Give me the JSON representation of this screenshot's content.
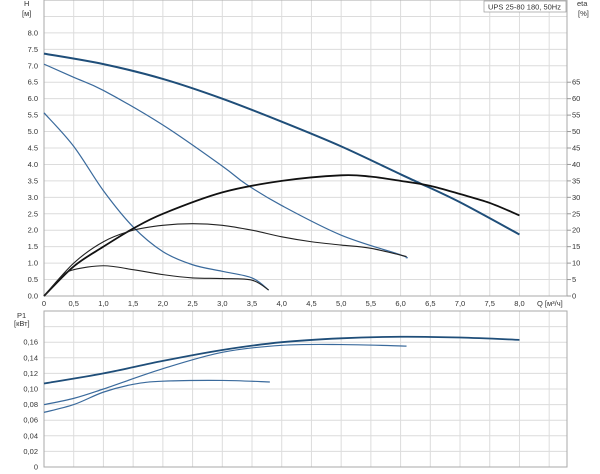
{
  "chart_data": [
    {
      "type": "line",
      "title": "UPS 25-80 180, 50Hz",
      "xlabel": "Q [м³/ч]",
      "ylabel": "H",
      "ylabel_unit": "[м]",
      "y2label": "eta",
      "y2label_unit": "[%]",
      "xlim": [
        0,
        8.8
      ],
      "ylim": [
        0,
        9.0
      ],
      "y2lim": [
        0,
        90
      ],
      "grid": true,
      "x_ticks": [
        "0",
        "0,5",
        "1,0",
        "1,5",
        "2,0",
        "2,5",
        "3,0",
        "3,5",
        "4,0",
        "4,5",
        "5,0",
        "5,5",
        "6,0",
        "6,5",
        "7,0",
        "7,5",
        "8,0"
      ],
      "y_ticks": [
        "0.0",
        "0.5",
        "1.0",
        "1.5",
        "2.0",
        "2.5",
        "3.0",
        "3.5",
        "4.0",
        "4.5",
        "5.0",
        "5.5",
        "6.0",
        "6.5",
        "7.0",
        "7.5",
        "8.0"
      ],
      "y2_ticks": [
        "0",
        "5",
        "10",
        "15",
        "20",
        "25",
        "30",
        "35",
        "40",
        "45",
        "50",
        "55",
        "60",
        "65"
      ],
      "head_series": [
        {
          "speed": "max",
          "color": "#1f4e79",
          "x": [
            0,
            1,
            2,
            3,
            4,
            5,
            6,
            6.3,
            7,
            8
          ],
          "y": [
            7.37,
            7.05,
            6.6,
            6.0,
            5.3,
            4.55,
            3.7,
            3.45,
            2.85,
            1.87
          ]
        },
        {
          "speed": "mid",
          "color": "#3a6a9c",
          "x": [
            0,
            0.5,
            1,
            2,
            3,
            3.4,
            4,
            5,
            6,
            6.1
          ],
          "y": [
            7.05,
            6.65,
            6.25,
            5.2,
            3.95,
            3.4,
            2.75,
            1.85,
            1.25,
            1.15
          ]
        },
        {
          "speed": "low",
          "color": "#3a6a9c",
          "x": [
            0,
            0.5,
            1,
            1.5,
            2,
            2.5,
            3,
            3.5,
            3.78
          ],
          "y": [
            5.57,
            4.55,
            3.2,
            2.1,
            1.35,
            0.95,
            0.75,
            0.55,
            0.18
          ]
        }
      ],
      "eta_series": [
        {
          "speed": "max",
          "color": "#111111",
          "x": [
            0,
            0.5,
            1,
            1.5,
            2,
            3,
            4,
            5,
            5.5,
            6,
            6.5,
            7,
            7.5,
            8
          ],
          "y": [
            0,
            9,
            15,
            20.5,
            25,
            31.5,
            35,
            36.7,
            36.3,
            35,
            33.5,
            31,
            28.3,
            24.5
          ]
        },
        {
          "speed": "mid",
          "color": "#222222",
          "x": [
            0,
            0.5,
            1,
            1.5,
            2,
            2.5,
            3,
            3.5,
            4,
            4.5,
            5,
            5.5,
            6.1
          ],
          "y": [
            0,
            10,
            16.5,
            20,
            21.5,
            22,
            21.5,
            20,
            18,
            16.5,
            15.5,
            14.5,
            12
          ]
        },
        {
          "speed": "low",
          "color": "#222222",
          "x": [
            0,
            0.3,
            0.5,
            1,
            1.5,
            2,
            2.5,
            3,
            3.5,
            3.78
          ],
          "y": [
            0,
            6,
            8,
            9.2,
            8,
            6.5,
            5.5,
            5.3,
            4.8,
            1.8
          ]
        }
      ]
    },
    {
      "type": "line",
      "ylabel": "P1",
      "ylabel_unit": "[кВт]",
      "xlim": [
        0,
        8.8
      ],
      "ylim": [
        0,
        0.2
      ],
      "grid": true,
      "y_ticks": [
        "0",
        "0,02",
        "0,04",
        "0,06",
        "0,08",
        "0,10",
        "0,12",
        "0,14",
        "0,16"
      ],
      "series": [
        {
          "speed": "max",
          "color": "#1f4e79",
          "x": [
            0,
            1,
            2,
            3,
            4,
            5,
            6,
            7,
            8
          ],
          "y": [
            0.107,
            0.12,
            0.136,
            0.15,
            0.16,
            0.165,
            0.167,
            0.166,
            0.163
          ]
        },
        {
          "speed": "mid",
          "color": "#3a6a9c",
          "x": [
            0,
            0.5,
            1,
            2,
            3,
            4,
            5,
            6.1
          ],
          "y": [
            0.08,
            0.088,
            0.1,
            0.126,
            0.147,
            0.156,
            0.157,
            0.155
          ]
        },
        {
          "speed": "low",
          "color": "#3a6a9c",
          "x": [
            0,
            0.5,
            1,
            1.5,
            2,
            3,
            3.8
          ],
          "y": [
            0.07,
            0.08,
            0.096,
            0.106,
            0.11,
            0.111,
            0.109
          ]
        }
      ]
    }
  ]
}
